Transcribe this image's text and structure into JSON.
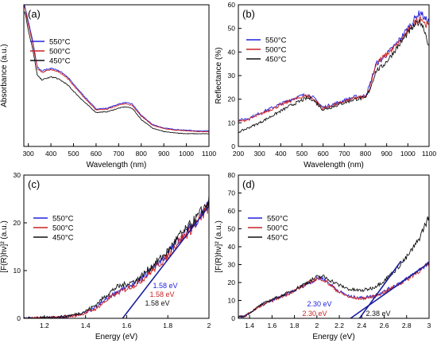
{
  "colors": {
    "550C": "#2222dd",
    "500C": "#cc2222",
    "450C": "#111111",
    "fit": "#1b1f9e",
    "axis": "#000000"
  },
  "chart_data": [
    {
      "panel": "(a)",
      "type": "line",
      "xlabel": "Wavelength (nm)",
      "ylabel": "Absorbance (a.u.)",
      "xlim": [
        280,
        1100
      ],
      "xticks": [
        300,
        400,
        500,
        600,
        700,
        800,
        900,
        1000,
        1100
      ],
      "yticks": [],
      "ylim": [
        0,
        1
      ],
      "legend": [
        "550°C",
        "500°C",
        "450°C"
      ],
      "legend_position": "top-left",
      "series": [
        {
          "name": "550°C",
          "color_key": "550C",
          "x": [
            285,
            300,
            320,
            340,
            360,
            380,
            400,
            420,
            440,
            460,
            480,
            500,
            550,
            600,
            650,
            700,
            730,
            760,
            800,
            850,
            900,
            950,
            1000,
            1050,
            1100
          ],
          "y": [
            0.99,
            0.88,
            0.74,
            0.56,
            0.53,
            0.545,
            0.55,
            0.545,
            0.53,
            0.51,
            0.48,
            0.44,
            0.35,
            0.265,
            0.27,
            0.3,
            0.31,
            0.3,
            0.22,
            0.155,
            0.13,
            0.12,
            0.115,
            0.11,
            0.11
          ]
        },
        {
          "name": "500°C",
          "color_key": "500C",
          "x": [
            285,
            300,
            320,
            340,
            360,
            380,
            400,
            420,
            440,
            460,
            480,
            500,
            550,
            600,
            650,
            700,
            730,
            760,
            800,
            850,
            900,
            950,
            1000,
            1050,
            1100
          ],
          "y": [
            0.98,
            0.86,
            0.72,
            0.55,
            0.52,
            0.535,
            0.54,
            0.535,
            0.52,
            0.5,
            0.47,
            0.43,
            0.34,
            0.257,
            0.263,
            0.293,
            0.3,
            0.29,
            0.215,
            0.15,
            0.125,
            0.115,
            0.11,
            0.105,
            0.105
          ]
        },
        {
          "name": "450°C",
          "color_key": "450C",
          "x": [
            285,
            300,
            320,
            340,
            360,
            380,
            400,
            420,
            440,
            460,
            480,
            500,
            550,
            600,
            650,
            700,
            730,
            760,
            800,
            850,
            900,
            950,
            1000,
            1050,
            1100
          ],
          "y": [
            0.95,
            0.82,
            0.68,
            0.5,
            0.47,
            0.48,
            0.49,
            0.485,
            0.47,
            0.45,
            0.425,
            0.39,
            0.31,
            0.24,
            0.245,
            0.27,
            0.28,
            0.27,
            0.19,
            0.13,
            0.105,
            0.095,
            0.09,
            0.09,
            0.09
          ]
        }
      ]
    },
    {
      "panel": "(b)",
      "type": "line",
      "xlabel": "Wavelength (nm)",
      "ylabel": "Reflectance (%)",
      "xlim": [
        200,
        1100
      ],
      "ylim": [
        0,
        60
      ],
      "xticks": [
        200,
        300,
        400,
        500,
        600,
        700,
        800,
        900,
        1000,
        1100
      ],
      "yticks": [
        0,
        10,
        20,
        30,
        40,
        50,
        60
      ],
      "legend": [
        "550°C",
        "500°C",
        "450°C"
      ],
      "legend_position": "top-left",
      "series": [
        {
          "name": "550°C",
          "color_key": "550C",
          "x": [
            200,
            250,
            300,
            350,
            400,
            450,
            500,
            525,
            550,
            600,
            650,
            700,
            750,
            800,
            820,
            850,
            880,
            900,
            950,
            1000,
            1040,
            1060,
            1080,
            1100
          ],
          "y": [
            11,
            12,
            14,
            16,
            18,
            20,
            21.5,
            22,
            21,
            16.5,
            18,
            19.5,
            21,
            21.5,
            26,
            35,
            37,
            39,
            44,
            50,
            55,
            57,
            54,
            53
          ]
        },
        {
          "name": "500°C",
          "color_key": "500C",
          "x": [
            200,
            250,
            300,
            350,
            400,
            450,
            500,
            525,
            550,
            600,
            650,
            700,
            750,
            800,
            820,
            850,
            880,
            900,
            950,
            1000,
            1040,
            1060,
            1080,
            1100
          ],
          "y": [
            10.5,
            11.5,
            13.5,
            15.5,
            17.5,
            19.5,
            21,
            21.5,
            20.5,
            16,
            17.5,
            19,
            20.5,
            21,
            25,
            35,
            37.5,
            39,
            43,
            49,
            53,
            55,
            52,
            51
          ]
        },
        {
          "name": "450°C",
          "color_key": "450C",
          "x": [
            200,
            250,
            300,
            350,
            400,
            450,
            500,
            525,
            550,
            600,
            650,
            700,
            750,
            800,
            820,
            850,
            880,
            900,
            950,
            1000,
            1040,
            1060,
            1080,
            1100
          ],
          "y": [
            6,
            8,
            10,
            12.5,
            15,
            17.5,
            19.5,
            20.5,
            20,
            15.5,
            17,
            18.5,
            20,
            20.5,
            24,
            32,
            34,
            36,
            42,
            48,
            52,
            53,
            49,
            42
          ]
        }
      ]
    },
    {
      "panel": "(c)",
      "type": "line",
      "xlabel": "Energy (eV)",
      "ylabel": "[F(R)hν]² (a.u.)",
      "xlim": [
        1.1,
        2.0
      ],
      "ylim": [
        0,
        30
      ],
      "xticks": [
        1.2,
        1.4,
        1.6,
        1.8,
        2.0
      ],
      "yticks": [
        0,
        10,
        20,
        30
      ],
      "legend": [
        "550°C",
        "500°C",
        "450°C"
      ],
      "legend_position": "center-left",
      "annotations": [
        {
          "text": "1.58 eV",
          "color_key": "550C"
        },
        {
          "text": "1.58 eV",
          "color_key": "500C"
        },
        {
          "text": "1.58 eV",
          "color_key": "450C"
        }
      ],
      "fit_line": {
        "x": [
          1.58,
          2.0
        ],
        "y": [
          0,
          23.5
        ]
      },
      "series": [
        {
          "name": "550°C",
          "color_key": "550C",
          "x": [
            1.1,
            1.2,
            1.3,
            1.35,
            1.4,
            1.45,
            1.5,
            1.55,
            1.6,
            1.65,
            1.7,
            1.75,
            1.8,
            1.85,
            1.9,
            1.95,
            2.0
          ],
          "y": [
            0,
            0.1,
            0.3,
            0.6,
            1.2,
            2.2,
            4.0,
            5.5,
            6.5,
            7.5,
            9.5,
            11.5,
            13.5,
            16.5,
            18.5,
            21.0,
            24.0
          ]
        },
        {
          "name": "500°C",
          "color_key": "500C",
          "x": [
            1.1,
            1.2,
            1.3,
            1.35,
            1.4,
            1.45,
            1.5,
            1.55,
            1.6,
            1.65,
            1.7,
            1.75,
            1.8,
            1.85,
            1.9,
            1.95,
            2.0
          ],
          "y": [
            0,
            0.1,
            0.3,
            0.6,
            1.1,
            2.0,
            3.7,
            5.2,
            6.2,
            7.2,
            9.0,
            11.0,
            13.0,
            16.0,
            18.0,
            20.5,
            23.5
          ]
        },
        {
          "name": "450°C",
          "color_key": "450C",
          "x": [
            1.1,
            1.2,
            1.3,
            1.35,
            1.4,
            1.45,
            1.5,
            1.55,
            1.6,
            1.65,
            1.7,
            1.75,
            1.8,
            1.85,
            1.9,
            1.95,
            2.0
          ],
          "y": [
            0,
            0.1,
            0.4,
            0.8,
            1.5,
            2.8,
            4.8,
            6.5,
            7.2,
            8.0,
            10.0,
            12.0,
            14.0,
            17.0,
            19.0,
            21.5,
            24.5
          ]
        }
      ]
    },
    {
      "panel": "(d)",
      "type": "line",
      "xlabel": "Energy (eV)",
      "ylabel": "[F(R)hν]² (a.u.)",
      "xlim": [
        1.3,
        3.0
      ],
      "ylim": [
        0,
        80
      ],
      "xticks": [
        1.4,
        1.6,
        1.8,
        2.0,
        2.2,
        2.4,
        2.6,
        2.8,
        3.0
      ],
      "yticks": [
        0,
        10,
        20,
        30,
        40,
        50,
        60,
        70,
        80
      ],
      "legend": [
        "550°C",
        "500°C",
        "450°C"
      ],
      "legend_position": "top-left",
      "annotations": [
        {
          "text": "2.30 eV",
          "color_key": "550C"
        },
        {
          "text": "2.30 eV",
          "color_key": "500C"
        },
        {
          "text": "2.38 eV",
          "color_key": "450C"
        }
      ],
      "fit_lines": [
        {
          "x": [
            2.3,
            3.0
          ],
          "y": [
            0,
            31
          ]
        },
        {
          "x": [
            2.38,
            2.75
          ],
          "y": [
            0,
            32
          ]
        }
      ],
      "series": [
        {
          "name": "550°C",
          "color_key": "550C",
          "x": [
            1.35,
            1.4,
            1.5,
            1.6,
            1.7,
            1.8,
            1.9,
            2.0,
            2.05,
            2.1,
            2.2,
            2.3,
            2.4,
            2.5,
            2.6,
            2.7,
            2.8,
            2.9,
            3.0
          ],
          "y": [
            1,
            3,
            7,
            10,
            12.5,
            15.5,
            19,
            22,
            22.5,
            20,
            15,
            12,
            11.5,
            12.5,
            15,
            18.5,
            22,
            26.5,
            31
          ]
        },
        {
          "name": "500°C",
          "color_key": "500C",
          "x": [
            1.35,
            1.4,
            1.5,
            1.6,
            1.7,
            1.8,
            1.9,
            2.0,
            2.05,
            2.1,
            2.2,
            2.3,
            2.4,
            2.5,
            2.6,
            2.7,
            2.8,
            2.9,
            3.0
          ],
          "y": [
            1,
            3,
            7,
            10,
            12.5,
            15.5,
            19,
            22,
            22,
            19.5,
            14.5,
            11.5,
            11,
            12,
            14.5,
            18,
            21.5,
            26,
            30.5
          ]
        },
        {
          "name": "450°C",
          "color_key": "450C",
          "x": [
            1.35,
            1.4,
            1.5,
            1.6,
            1.7,
            1.8,
            1.9,
            2.0,
            2.05,
            2.1,
            2.2,
            2.3,
            2.4,
            2.5,
            2.6,
            2.7,
            2.8,
            2.9,
            3.0
          ],
          "y": [
            1,
            3,
            7.5,
            10.5,
            13,
            16,
            19.5,
            23,
            23.5,
            22,
            18.5,
            16,
            15.5,
            17,
            21,
            27,
            34,
            43,
            57
          ]
        }
      ]
    }
  ]
}
